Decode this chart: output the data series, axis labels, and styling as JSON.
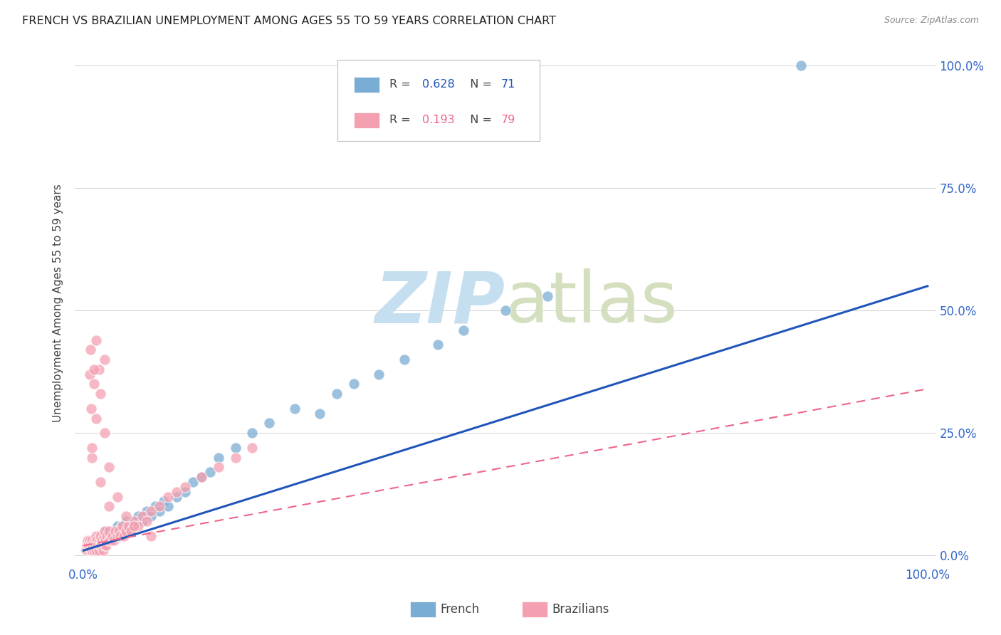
{
  "title": "FRENCH VS BRAZILIAN UNEMPLOYMENT AMONG AGES 55 TO 59 YEARS CORRELATION CHART",
  "source": "Source: ZipAtlas.com",
  "ylabel": "Unemployment Among Ages 55 to 59 years",
  "background_color": "#ffffff",
  "legend_french_R": "0.628",
  "legend_french_N": "71",
  "legend_brazilian_R": "0.193",
  "legend_brazilian_N": "79",
  "french_color": "#7aadd4",
  "brazilian_color": "#f4a0b0",
  "french_line_color": "#2255bb",
  "brazilian_line_color": "#ee6688",
  "french_slope": 0.54,
  "french_intercept": 0.01,
  "braz_slope": 0.32,
  "braz_intercept": 0.02,
  "french_scatter_x": [
    0.003,
    0.004,
    0.005,
    0.006,
    0.007,
    0.008,
    0.009,
    0.01,
    0.01,
    0.011,
    0.012,
    0.013,
    0.014,
    0.015,
    0.015,
    0.016,
    0.017,
    0.018,
    0.019,
    0.02,
    0.021,
    0.022,
    0.023,
    0.024,
    0.025,
    0.026,
    0.027,
    0.028,
    0.03,
    0.032,
    0.033,
    0.035,
    0.036,
    0.038,
    0.04,
    0.042,
    0.045,
    0.047,
    0.05,
    0.053,
    0.055,
    0.058,
    0.06,
    0.065,
    0.07,
    0.075,
    0.08,
    0.085,
    0.09,
    0.095,
    0.1,
    0.11,
    0.12,
    0.13,
    0.14,
    0.15,
    0.16,
    0.18,
    0.2,
    0.22,
    0.25,
    0.28,
    0.3,
    0.32,
    0.35,
    0.38,
    0.42,
    0.45,
    0.5,
    0.55,
    0.85
  ],
  "french_scatter_y": [
    0.01,
    0.02,
    0.01,
    0.02,
    0.01,
    0.03,
    0.02,
    0.02,
    0.01,
    0.03,
    0.02,
    0.01,
    0.03,
    0.02,
    0.01,
    0.03,
    0.02,
    0.01,
    0.02,
    0.03,
    0.02,
    0.04,
    0.02,
    0.03,
    0.04,
    0.03,
    0.05,
    0.03,
    0.04,
    0.03,
    0.04,
    0.05,
    0.04,
    0.05,
    0.06,
    0.04,
    0.06,
    0.05,
    0.07,
    0.06,
    0.05,
    0.07,
    0.06,
    0.08,
    0.07,
    0.09,
    0.08,
    0.1,
    0.09,
    0.11,
    0.1,
    0.12,
    0.13,
    0.15,
    0.16,
    0.17,
    0.2,
    0.22,
    0.25,
    0.27,
    0.3,
    0.29,
    0.33,
    0.35,
    0.37,
    0.4,
    0.43,
    0.46,
    0.5,
    0.53,
    1.0
  ],
  "brazilian_scatter_x": [
    0.003,
    0.004,
    0.005,
    0.005,
    0.006,
    0.007,
    0.007,
    0.008,
    0.009,
    0.01,
    0.01,
    0.011,
    0.012,
    0.013,
    0.014,
    0.015,
    0.015,
    0.016,
    0.017,
    0.018,
    0.019,
    0.02,
    0.02,
    0.021,
    0.022,
    0.023,
    0.024,
    0.025,
    0.025,
    0.026,
    0.027,
    0.028,
    0.03,
    0.03,
    0.032,
    0.034,
    0.036,
    0.038,
    0.04,
    0.042,
    0.044,
    0.046,
    0.048,
    0.05,
    0.053,
    0.056,
    0.06,
    0.065,
    0.07,
    0.075,
    0.08,
    0.09,
    0.1,
    0.11,
    0.12,
    0.14,
    0.16,
    0.18,
    0.2,
    0.007,
    0.008,
    0.009,
    0.01,
    0.012,
    0.015,
    0.018,
    0.02,
    0.025,
    0.03,
    0.025,
    0.012,
    0.015,
    0.01,
    0.02,
    0.03,
    0.04,
    0.05,
    0.06,
    0.08
  ],
  "brazilian_scatter_y": [
    0.01,
    0.02,
    0.01,
    0.03,
    0.02,
    0.01,
    0.03,
    0.02,
    0.01,
    0.03,
    0.01,
    0.02,
    0.01,
    0.03,
    0.02,
    0.04,
    0.01,
    0.03,
    0.02,
    0.01,
    0.03,
    0.02,
    0.04,
    0.02,
    0.03,
    0.01,
    0.04,
    0.02,
    0.05,
    0.03,
    0.02,
    0.04,
    0.03,
    0.05,
    0.03,
    0.04,
    0.03,
    0.05,
    0.04,
    0.05,
    0.04,
    0.06,
    0.04,
    0.05,
    0.06,
    0.05,
    0.07,
    0.06,
    0.08,
    0.07,
    0.09,
    0.1,
    0.12,
    0.13,
    0.14,
    0.16,
    0.18,
    0.2,
    0.22,
    0.37,
    0.42,
    0.3,
    0.2,
    0.35,
    0.28,
    0.38,
    0.33,
    0.25,
    0.18,
    0.4,
    0.38,
    0.44,
    0.22,
    0.15,
    0.1,
    0.12,
    0.08,
    0.06,
    0.04
  ]
}
